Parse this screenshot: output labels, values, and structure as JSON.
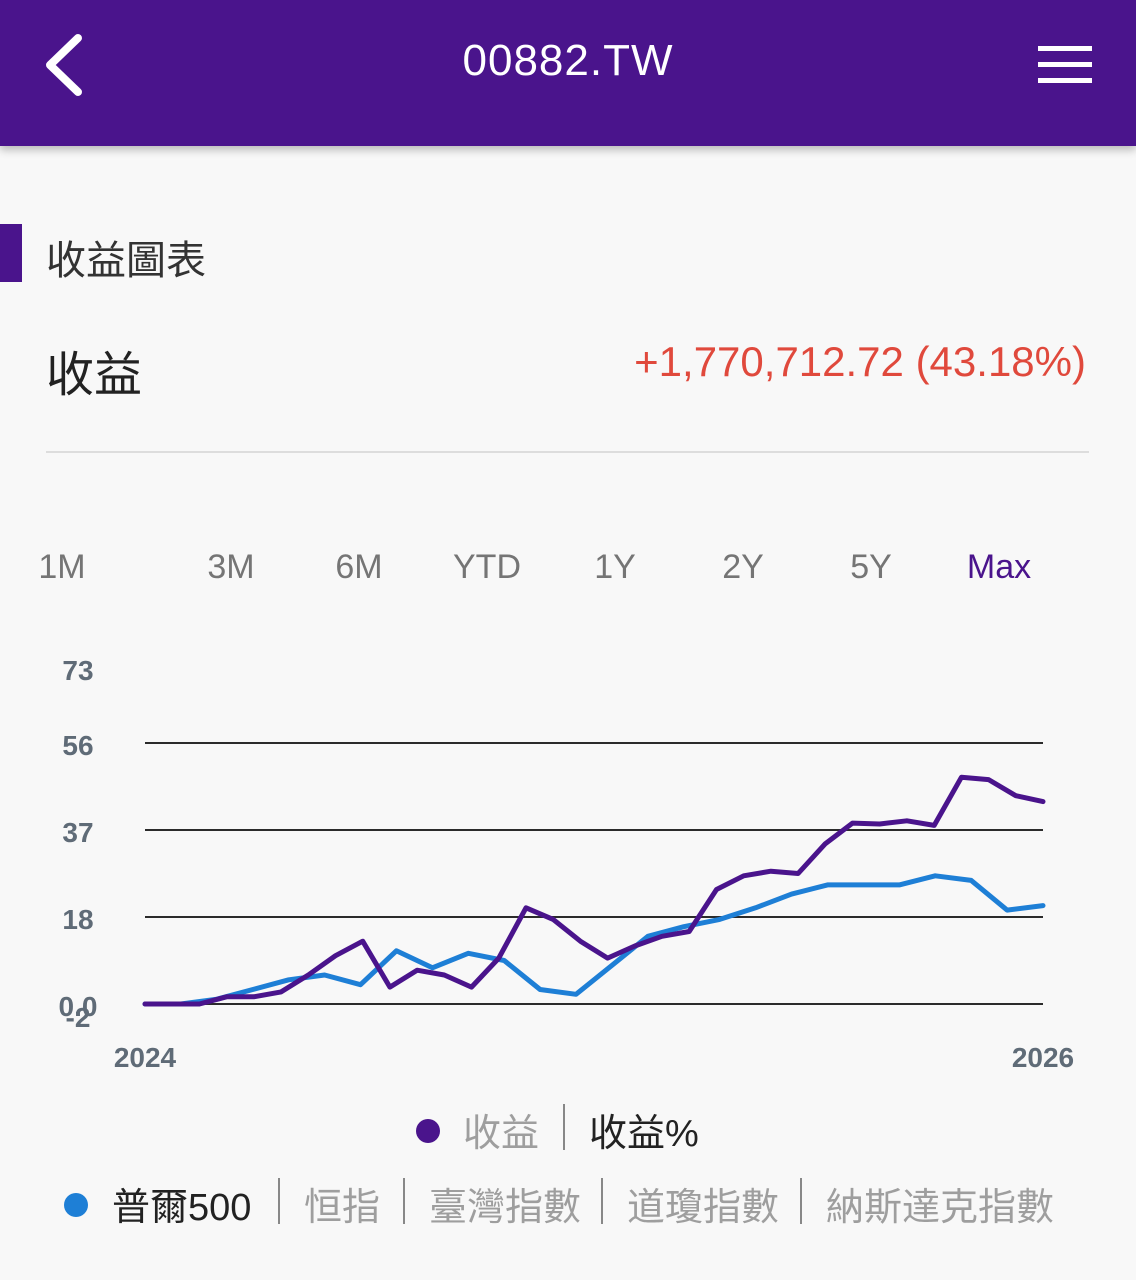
{
  "header": {
    "title": "00882.TW",
    "back_icon": "chevron-left-icon",
    "menu_icon": "hamburger-menu-icon"
  },
  "section": {
    "title": "收益圖表"
  },
  "summary": {
    "label": "收益",
    "value": "+1,770,712.72 (43.18%)",
    "value_color": "#e0493c"
  },
  "ranges": [
    "1M",
    "3M",
    "6M",
    "YTD",
    "1Y",
    "2Y",
    "5Y",
    "Max"
  ],
  "active_range": "Max",
  "colors": {
    "accent": "#4a148c",
    "benchmark": "#1e7fd6",
    "positive": "#e0493c"
  },
  "chart_data": {
    "type": "line",
    "y_ticks": [
      "73",
      "56",
      "37",
      "18",
      "0.0",
      "-2"
    ],
    "ylim": [
      -2,
      73
    ],
    "x_ticks": [
      "2024",
      "2026"
    ],
    "grid": true,
    "series": [
      {
        "name": "收益",
        "color": "#4a148c",
        "values": [
          0,
          0,
          0,
          -1.5,
          -1.5,
          -2.5,
          6,
          10,
          13,
          3.5,
          7,
          6,
          3.5,
          9.5,
          20,
          17.5,
          13,
          9.5,
          12,
          14,
          15,
          24,
          27,
          28,
          27.5,
          34,
          38.5,
          38.3,
          39,
          38,
          48.5,
          48,
          44.5,
          43.2
        ]
      },
      {
        "name": "普爾500",
        "color": "#1e7fd6",
        "values": [
          0,
          0,
          1,
          3,
          5,
          6,
          4,
          11,
          7.5,
          10.5,
          9,
          3,
          2,
          8,
          14,
          16,
          17.5,
          20,
          23,
          25,
          25,
          25,
          27,
          26,
          19.5,
          20.5
        ]
      }
    ]
  },
  "legend_row1": {
    "items": [
      {
        "label": "收益",
        "color": "#4a148c",
        "selected": false
      },
      {
        "label": "收益%",
        "selected": true
      }
    ]
  },
  "legend_row2": {
    "items": [
      {
        "label": "普爾500",
        "color": "#1e7fd6",
        "selected": true
      },
      {
        "label": "恒指",
        "selected": false
      },
      {
        "label": "臺灣指數",
        "selected": false
      },
      {
        "label": "道瓊指數",
        "selected": false
      },
      {
        "label": "納斯達克指數",
        "selected": false
      }
    ]
  }
}
